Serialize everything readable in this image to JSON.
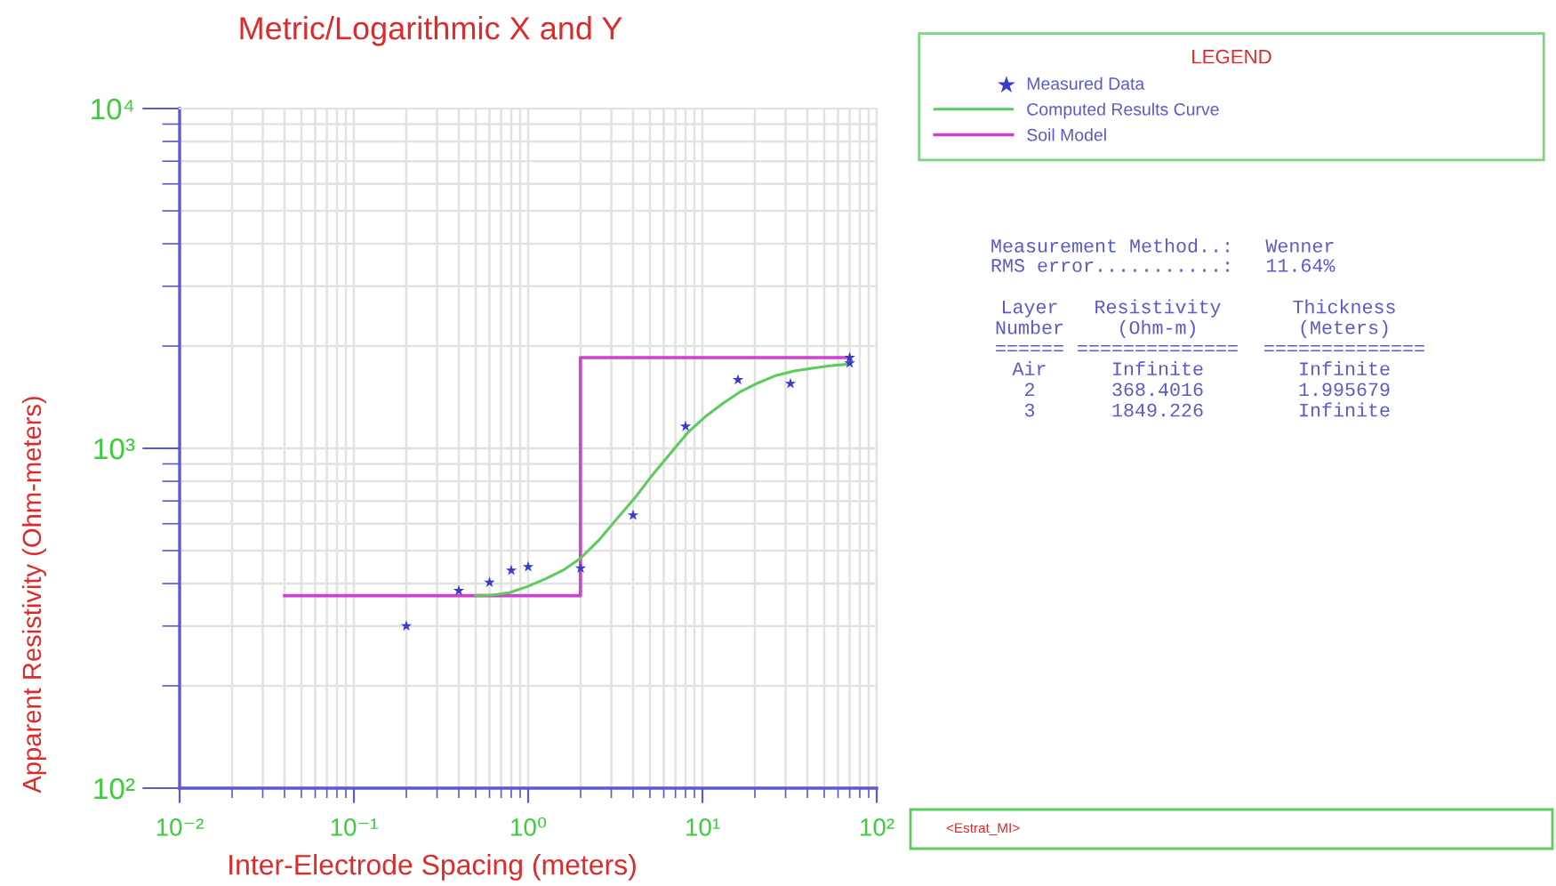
{
  "chart_data": {
    "type": "line",
    "title": "Metric/Logarithmic X and Y",
    "xlabel": "Inter-Electrode Spacing (meters)",
    "ylabel": "Apparent Resistivity (Ohm-meters)",
    "legend_title": "LEGEND",
    "log": "xy",
    "xlim": [
      0.01,
      100
    ],
    "ylim": [
      100,
      10000
    ],
    "xticks": [
      {
        "value": 0.01,
        "label": "10⁻²"
      },
      {
        "value": 0.1,
        "label": "10⁻¹"
      },
      {
        "value": 1,
        "label": "10⁰"
      },
      {
        "value": 10,
        "label": "10¹"
      },
      {
        "value": 100,
        "label": "10²"
      }
    ],
    "yticks": [
      {
        "value": 100,
        "label": "10²"
      },
      {
        "value": 1000,
        "label": "10³"
      },
      {
        "value": 10000,
        "label": "10⁴"
      }
    ],
    "grid": true,
    "legend": "top right",
    "series": [
      {
        "name": "Measured Data",
        "type": "scatter",
        "marker": "star",
        "color": "#3a3acc",
        "x": [
          0.2,
          0.4,
          0.6,
          0.8,
          1,
          2,
          4,
          8,
          16,
          32,
          70,
          70
        ],
        "values": [
          300,
          381,
          403,
          437,
          448,
          444,
          635,
          1160,
          1590,
          1550,
          1850,
          1780
        ]
      },
      {
        "name": "Computed Results Curve",
        "color": "#5ccc5c",
        "x": [
          0.5,
          0.62,
          0.78,
          0.99,
          1.26,
          1.59,
          2.0,
          2.54,
          3.2,
          4.06,
          5.1,
          6.5,
          8.2,
          10.4,
          13.2,
          16.6,
          21,
          26.6,
          33.7,
          42.6,
          53.8,
          70
        ],
        "values": [
          369,
          370,
          376,
          392,
          413,
          438,
          475,
          536,
          617,
          711,
          828,
          961,
          1110,
          1240,
          1360,
          1470,
          1560,
          1640,
          1690,
          1720,
          1750,
          1770
        ]
      },
      {
        "name": "Soil Model",
        "type": "step",
        "color": "#cc44cc",
        "x": [
          0.04,
          1.996,
          70
        ],
        "values": [
          368.4,
          1849.2,
          1849.2
        ]
      }
    ],
    "annotations": [
      "Measurement Method..:",
      "Wenner",
      "RMS error...........:",
      "11.64%",
      "Layer",
      "Resistivity",
      "Thickness",
      "Number",
      "(Ohm-m)",
      "(Meters)",
      "======",
      "==============",
      "==============",
      "Air",
      "Infinite",
      "Infinite",
      "2",
      "368.4016",
      "1.995679",
      "3",
      "1849.226",
      "Infinite",
      "<Estrat_MI>"
    ]
  }
}
